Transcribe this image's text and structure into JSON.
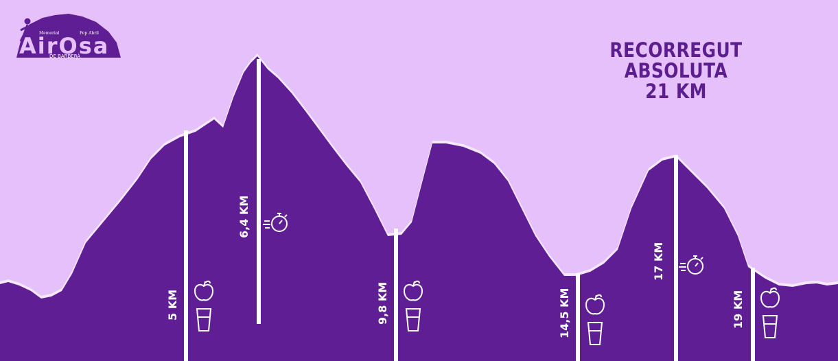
{
  "title": {
    "line1": "RECORREGUT ABSOLUTA",
    "line2": "21 KM"
  },
  "logo": {
    "top_left": "Memorial",
    "top_right": "Pep Abril",
    "name": "AirOsa",
    "bottom": "DE BARBERÀ"
  },
  "markers": [
    {
      "label": "5 KM",
      "apple": true,
      "glass": true,
      "timer": false
    },
    {
      "label": "6,4 KM",
      "apple": false,
      "glass": false,
      "timer": true
    },
    {
      "label": "9,8 KM",
      "apple": true,
      "glass": true,
      "timer": false
    },
    {
      "label": "14,5 KM",
      "apple": true,
      "glass": true,
      "timer": false
    },
    {
      "label": "17 KM",
      "apple": false,
      "glass": false,
      "timer": true
    },
    {
      "label": "19 KM",
      "apple": true,
      "glass": true,
      "timer": false
    }
  ],
  "colors": {
    "background": "#e6c0fb",
    "profile": "#5f1e93",
    "title": "#5c1e8f",
    "marker": "#ffffff"
  },
  "icons": [
    "apple-icon",
    "glass-icon",
    "stopwatch-icon",
    "runner-icon"
  ]
}
